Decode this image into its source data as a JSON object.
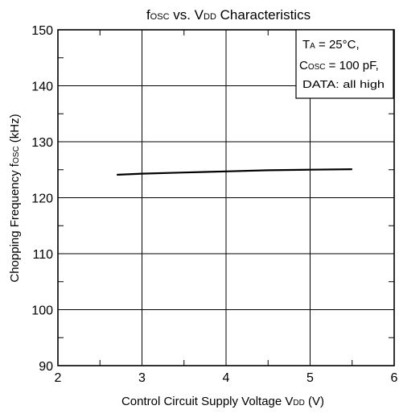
{
  "chart_data": {
    "type": "line",
    "title": {
      "main": "f",
      "sub": "OSC",
      "rest": " vs. V",
      "sub2": "DD",
      "tail": " Characteristics"
    },
    "xlabel": {
      "main": "Control Circuit Supply Voltage V",
      "sub": "DD",
      "tail": " (V)"
    },
    "ylabel": {
      "main": "Chopping Frequency f",
      "sub": "OSC",
      "tail": " (kHz)"
    },
    "xlim": [
      2,
      6
    ],
    "ylim": [
      90,
      150
    ],
    "x_ticks": [
      "2",
      "3",
      "4",
      "5",
      "6"
    ],
    "y_ticks": [
      "90",
      "100",
      "110",
      "120",
      "130",
      "140",
      "150"
    ],
    "grid": true,
    "series": [
      {
        "x": [
          2.7,
          3.0,
          3.5,
          4.0,
          4.5,
          5.0,
          5.5
        ],
        "y": [
          124.1,
          124.3,
          124.5,
          124.7,
          124.9,
          125.0,
          125.1
        ]
      }
    ],
    "annotation": [
      {
        "main": "T",
        "sub": "A",
        "tail": " = 25°C,"
      },
      {
        "main": "C",
        "sub": "OSC",
        "tail": " = 100 pF,"
      },
      {
        "main": "DATA:  all high",
        "sub": "",
        "tail": ""
      }
    ],
    "line_color": "#000000"
  }
}
